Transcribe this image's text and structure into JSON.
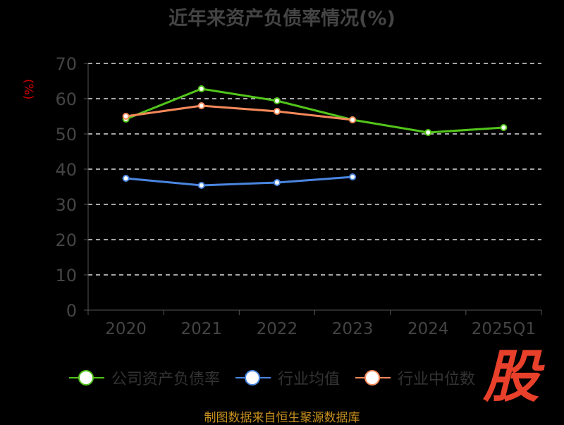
{
  "chart_data": {
    "type": "line",
    "title": "近年来资产负债率情况(%)",
    "ylabel": "(%)",
    "xlabel": "",
    "categories": [
      "2020",
      "2021",
      "2022",
      "2023",
      "2024",
      "2025Q1"
    ],
    "ylim": [
      0,
      70
    ],
    "yticks": [
      0,
      10,
      20,
      30,
      40,
      50,
      60,
      70
    ],
    "grid": true,
    "legend_position": "bottom",
    "series": [
      {
        "name": "公司资产负债率",
        "color": "#52c41a",
        "values": [
          54.2,
          62.8,
          59.4,
          54.0,
          50.4,
          51.8
        ]
      },
      {
        "name": "行业均值",
        "color": "#4a86e0",
        "values": [
          37.4,
          35.4,
          36.2,
          37.8,
          null,
          null
        ]
      },
      {
        "name": "行业中位数",
        "color": "#f5895a",
        "values": [
          55.0,
          58.0,
          56.4,
          54.0,
          null,
          null
        ]
      }
    ]
  },
  "source": "制图数据来自恒生聚源数据库",
  "logo_text": "股"
}
